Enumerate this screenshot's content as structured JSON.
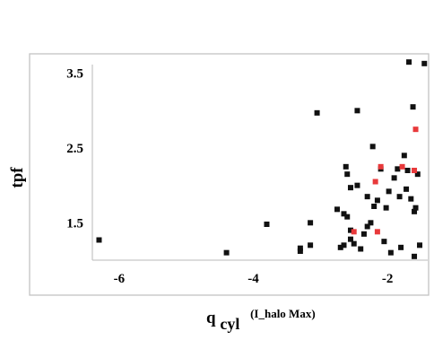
{
  "chart_data": {
    "type": "scatter",
    "title": "",
    "xlabel": {
      "main": "q",
      "subscript": "cyl",
      "superscript": "(I_halo Max)"
    },
    "ylabel": "tpf",
    "xlim": [
      -6.4,
      -1.4
    ],
    "ylim": [
      1.0,
      3.7
    ],
    "x_ticks": [
      {
        "value": -6,
        "label": "-6"
      },
      {
        "value": -4,
        "label": "-4"
      },
      {
        "value": -2,
        "label": "-2"
      }
    ],
    "y_ticks": [
      {
        "value": 1.5,
        "label": "1.5"
      },
      {
        "value": 2.5,
        "label": "2.5"
      },
      {
        "value": 3.5,
        "label": "3.5"
      }
    ],
    "grid": false,
    "legend": "none",
    "series": [
      {
        "color": "#111111",
        "points": [
          {
            "x": -6.3,
            "y": 1.27
          },
          {
            "x": -4.4,
            "y": 1.1
          },
          {
            "x": -3.8,
            "y": 1.48
          },
          {
            "x": -3.3,
            "y": 1.12
          },
          {
            "x": -3.3,
            "y": 1.16
          },
          {
            "x": -3.15,
            "y": 1.2
          },
          {
            "x": -3.15,
            "y": 1.5
          },
          {
            "x": -3.05,
            "y": 2.97
          },
          {
            "x": -2.75,
            "y": 1.68
          },
          {
            "x": -2.7,
            "y": 1.17
          },
          {
            "x": -2.65,
            "y": 1.2
          },
          {
            "x": -2.65,
            "y": 1.62
          },
          {
            "x": -2.62,
            "y": 2.25
          },
          {
            "x": -2.6,
            "y": 1.58
          },
          {
            "x": -2.6,
            "y": 2.15
          },
          {
            "x": -2.55,
            "y": 1.4
          },
          {
            "x": -2.55,
            "y": 1.97
          },
          {
            "x": -2.55,
            "y": 1.28
          },
          {
            "x": -2.5,
            "y": 1.22
          },
          {
            "x": -2.45,
            "y": 3.0
          },
          {
            "x": -2.45,
            "y": 2.0
          },
          {
            "x": -2.4,
            "y": 1.15
          },
          {
            "x": -2.35,
            "y": 1.35
          },
          {
            "x": -2.3,
            "y": 1.45
          },
          {
            "x": -2.3,
            "y": 1.85
          },
          {
            "x": -2.25,
            "y": 1.5
          },
          {
            "x": -2.22,
            "y": 2.52
          },
          {
            "x": -2.2,
            "y": 1.72
          },
          {
            "x": -2.15,
            "y": 1.8
          },
          {
            "x": -2.1,
            "y": 2.22
          },
          {
            "x": -2.05,
            "y": 1.25
          },
          {
            "x": -2.02,
            "y": 1.7
          },
          {
            "x": -1.98,
            "y": 1.92
          },
          {
            "x": -1.95,
            "y": 1.1
          },
          {
            "x": -1.9,
            "y": 2.1
          },
          {
            "x": -1.85,
            "y": 2.22
          },
          {
            "x": -1.82,
            "y": 1.85
          },
          {
            "x": -1.8,
            "y": 1.17
          },
          {
            "x": -1.75,
            "y": 2.4
          },
          {
            "x": -1.72,
            "y": 1.95
          },
          {
            "x": -1.7,
            "y": 2.2
          },
          {
            "x": -1.68,
            "y": 3.65
          },
          {
            "x": -1.65,
            "y": 1.82
          },
          {
            "x": -1.62,
            "y": 3.05
          },
          {
            "x": -1.6,
            "y": 1.05
          },
          {
            "x": -1.6,
            "y": 1.65
          },
          {
            "x": -1.58,
            "y": 1.7
          },
          {
            "x": -1.55,
            "y": 2.15
          },
          {
            "x": -1.52,
            "y": 1.2
          },
          {
            "x": -1.45,
            "y": 3.63
          }
        ]
      },
      {
        "color": "#e8393b",
        "points": [
          {
            "x": -2.5,
            "y": 1.38
          },
          {
            "x": -2.18,
            "y": 2.05
          },
          {
            "x": -2.15,
            "y": 1.38
          },
          {
            "x": -2.1,
            "y": 2.25
          },
          {
            "x": -1.78,
            "y": 2.25
          },
          {
            "x": -1.6,
            "y": 2.2
          },
          {
            "x": -1.58,
            "y": 2.75
          }
        ]
      }
    ]
  }
}
